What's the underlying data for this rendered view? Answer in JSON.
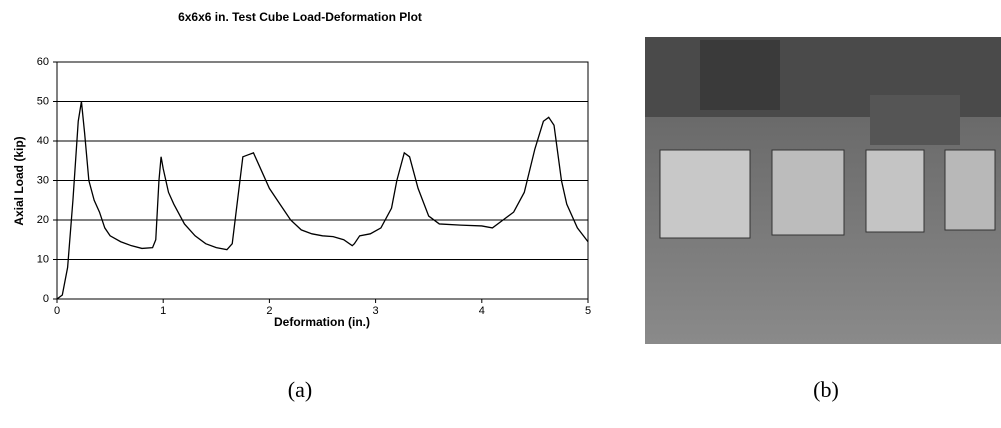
{
  "chart_data": {
    "type": "line",
    "title": "6x6x6 in. Test Cube Load-Deformation Plot",
    "x_label": "Deformation (in.)",
    "y_label": "Axial Load (kip)",
    "x": [
      0,
      0.05,
      0.1,
      0.15,
      0.2,
      0.23,
      0.26,
      0.3,
      0.35,
      0.4,
      0.45,
      0.5,
      0.6,
      0.7,
      0.8,
      0.9,
      0.93,
      0.96,
      0.98,
      1.0,
      1.05,
      1.1,
      1.2,
      1.3,
      1.4,
      1.5,
      1.6,
      1.65,
      1.7,
      1.75,
      1.8,
      1.85,
      1.9,
      2.0,
      2.1,
      2.2,
      2.3,
      2.4,
      2.5,
      2.6,
      2.7,
      2.78,
      2.8,
      2.85,
      2.95,
      3.05,
      3.15,
      3.2,
      3.27,
      3.32,
      3.4,
      3.5,
      3.6,
      3.8,
      4.0,
      4.1,
      4.2,
      4.3,
      4.4,
      4.5,
      4.58,
      4.63,
      4.68,
      4.75,
      4.8,
      4.9,
      5.0
    ],
    "series": [
      {
        "color": "#000000",
        "values": [
          0,
          1,
          8,
          25,
          45,
          50,
          42,
          30,
          25,
          22,
          18,
          16,
          14.5,
          13.5,
          12.8,
          13,
          15,
          30,
          36,
          33,
          27,
          24,
          19,
          16,
          14,
          13,
          12.5,
          14,
          25,
          36,
          36.5,
          37,
          34,
          28,
          24,
          20,
          17.5,
          16.5,
          16,
          15.8,
          15,
          13.5,
          14,
          16,
          16.5,
          18,
          23,
          30,
          37,
          36,
          28,
          21,
          19,
          18.7,
          18.5,
          18,
          20,
          22,
          27,
          38,
          45,
          46,
          44,
          30,
          24,
          18,
          14.5
        ]
      }
    ],
    "xlim": [
      0,
      5
    ],
    "xticks": [
      0,
      1,
      2,
      3,
      4,
      5
    ],
    "ylim": [
      0,
      60
    ],
    "yticks": [
      0,
      10,
      20,
      30,
      40,
      50,
      60
    ],
    "grid": true
  },
  "captions": [
    "(a)",
    "(b)"
  ]
}
